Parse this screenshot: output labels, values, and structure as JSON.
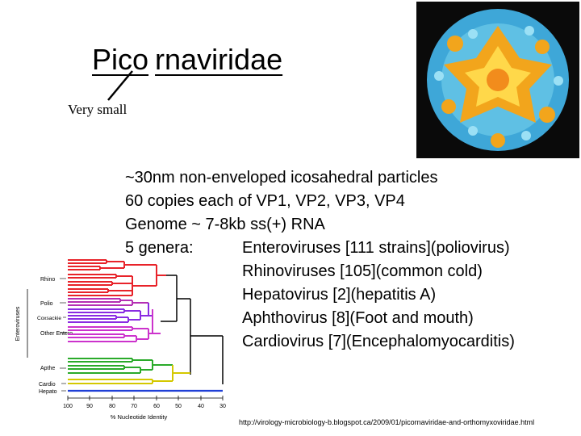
{
  "slide": {
    "title_part1": "Pico",
    "title_part2": "rnaviridae",
    "annotation": "Very small",
    "lines": [
      {
        "a": "~30nm non-enveloped icosahedral particles",
        "b": ""
      },
      {
        "a": "60 copies each of VP1, VP2, VP3, VP4",
        "b": ""
      },
      {
        "a": "Genome ~ 7-8kb ss(+) RNA",
        "b": ""
      },
      {
        "a": "5 genera:",
        "b": "Enteroviruses [111 strains](poliovirus)"
      },
      {
        "a": "",
        "b": "Rhinoviruses [105](common cold)"
      },
      {
        "a": "",
        "b": "Hepatovirus [2](hepatitis A)"
      },
      {
        "a": "",
        "b": "Aphthovirus [8](Foot and mouth)"
      },
      {
        "a": "",
        "b": "Cardiovirus [7](Encephalomyocarditis)"
      }
    ],
    "source": "http://virology-microbiology-b.blogspot.ca/2009/01/picornaviridae-and-orthomyxoviridae.html"
  },
  "tree": {
    "xlabel": "% Nucleotide Identity",
    "ticks": [
      "100",
      "90",
      "80",
      "70",
      "60",
      "50",
      "40",
      "30"
    ],
    "side_label": "Enteroviruses",
    "groups": [
      "Rhino",
      "Polio",
      "Coxsackie",
      "Other Entero",
      "Apthe",
      "Cardio",
      "Hepato"
    ],
    "colors": {
      "rhino": "#e8232a",
      "polio": "#b52fb3",
      "coxsackie": "#8a2be2",
      "other": "#cc33cc",
      "apthe": "#2aaa2a",
      "cardio": "#d4c800",
      "hepato": "#1f3fd6"
    }
  }
}
